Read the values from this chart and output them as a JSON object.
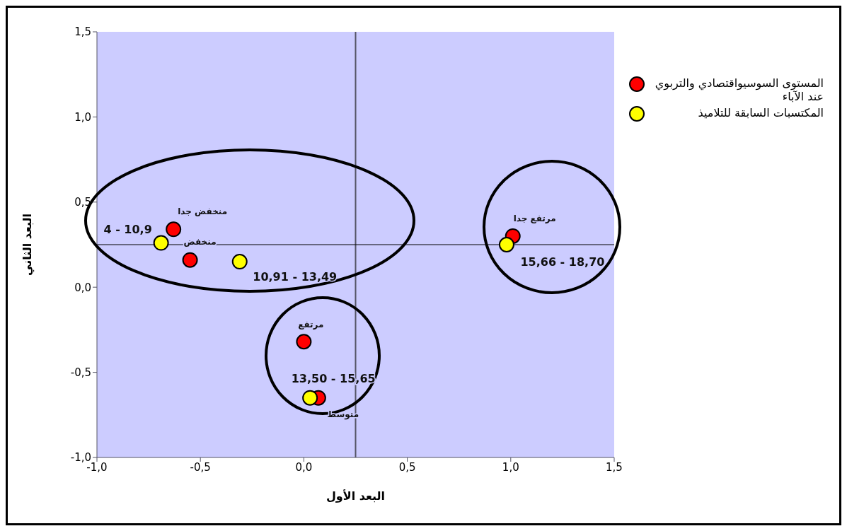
{
  "chart_data": {
    "type": "scatter",
    "xlabel": "البعد الأول",
    "ylabel": "البعد الثاني",
    "xlim": [
      -1.0,
      1.5
    ],
    "ylim": [
      -1.0,
      1.5
    ],
    "xticks": [
      {
        "value": -1.0,
        "label": "-1,0"
      },
      {
        "value": -0.5,
        "label": "-0,5"
      },
      {
        "value": 0,
        "label": "0,0"
      },
      {
        "value": 0.5,
        "label": "0,5"
      },
      {
        "value": 1.0,
        "label": "1,0"
      },
      {
        "value": 1.5,
        "label": "1,5"
      }
    ],
    "yticks": [
      {
        "value": -1.0,
        "label": "-1,0"
      },
      {
        "value": -0.5,
        "label": "-0,5"
      },
      {
        "value": 0,
        "label": "0,0"
      },
      {
        "value": 0.5,
        "label": "0,5"
      },
      {
        "value": 1.0,
        "label": "1,0"
      },
      {
        "value": 1.5,
        "label": "1,5"
      }
    ],
    "series": [
      {
        "name": "المستوى السوسيواقتصادي والتربوي عند الآباء",
        "color": "#ff0000",
        "x": [
          -0.63,
          -0.55,
          0.0,
          0.07,
          1.01
        ],
        "values": [
          0.34,
          0.16,
          -0.32,
          -0.65,
          0.3
        ]
      },
      {
        "name": "المكتسبات السابقة للتلاميذ",
        "color": "#ffff00",
        "x": [
          -0.69,
          -0.31,
          0.03,
          0.98
        ],
        "values": [
          0.26,
          0.15,
          -0.65,
          0.25
        ]
      }
    ],
    "marker": "circle",
    "grid": false,
    "legend": "right",
    "ref_lines": [
      {
        "axis": "x",
        "value": 0.25,
        "color": "#555566"
      },
      {
        "axis": "y",
        "value": 0.25,
        "color": "#000000"
      }
    ],
    "annotations": [
      {
        "text": "منخفض جدا",
        "x": -0.63,
        "y": 0.34
      },
      {
        "text": "4 - 10,9",
        "x": -0.69,
        "y": 0.26
      },
      {
        "text": "منخفض",
        "x": -0.55,
        "y": 0.16
      },
      {
        "text": "10,91 - 13,49",
        "x": -0.31,
        "y": 0.15
      },
      {
        "text": "مرتفع",
        "x": 0.0,
        "y": -0.32
      },
      {
        "text": "13,50 - 15,65",
        "x": 0.03,
        "y": -0.65
      },
      {
        "text": "متوسط",
        "x": 0.07,
        "y": -0.65
      },
      {
        "text": "مرتفع جدا",
        "x": 1.01,
        "y": 0.3
      },
      {
        "text": "15,66 - 18,70",
        "x": 0.98,
        "y": 0.25
      }
    ]
  }
}
